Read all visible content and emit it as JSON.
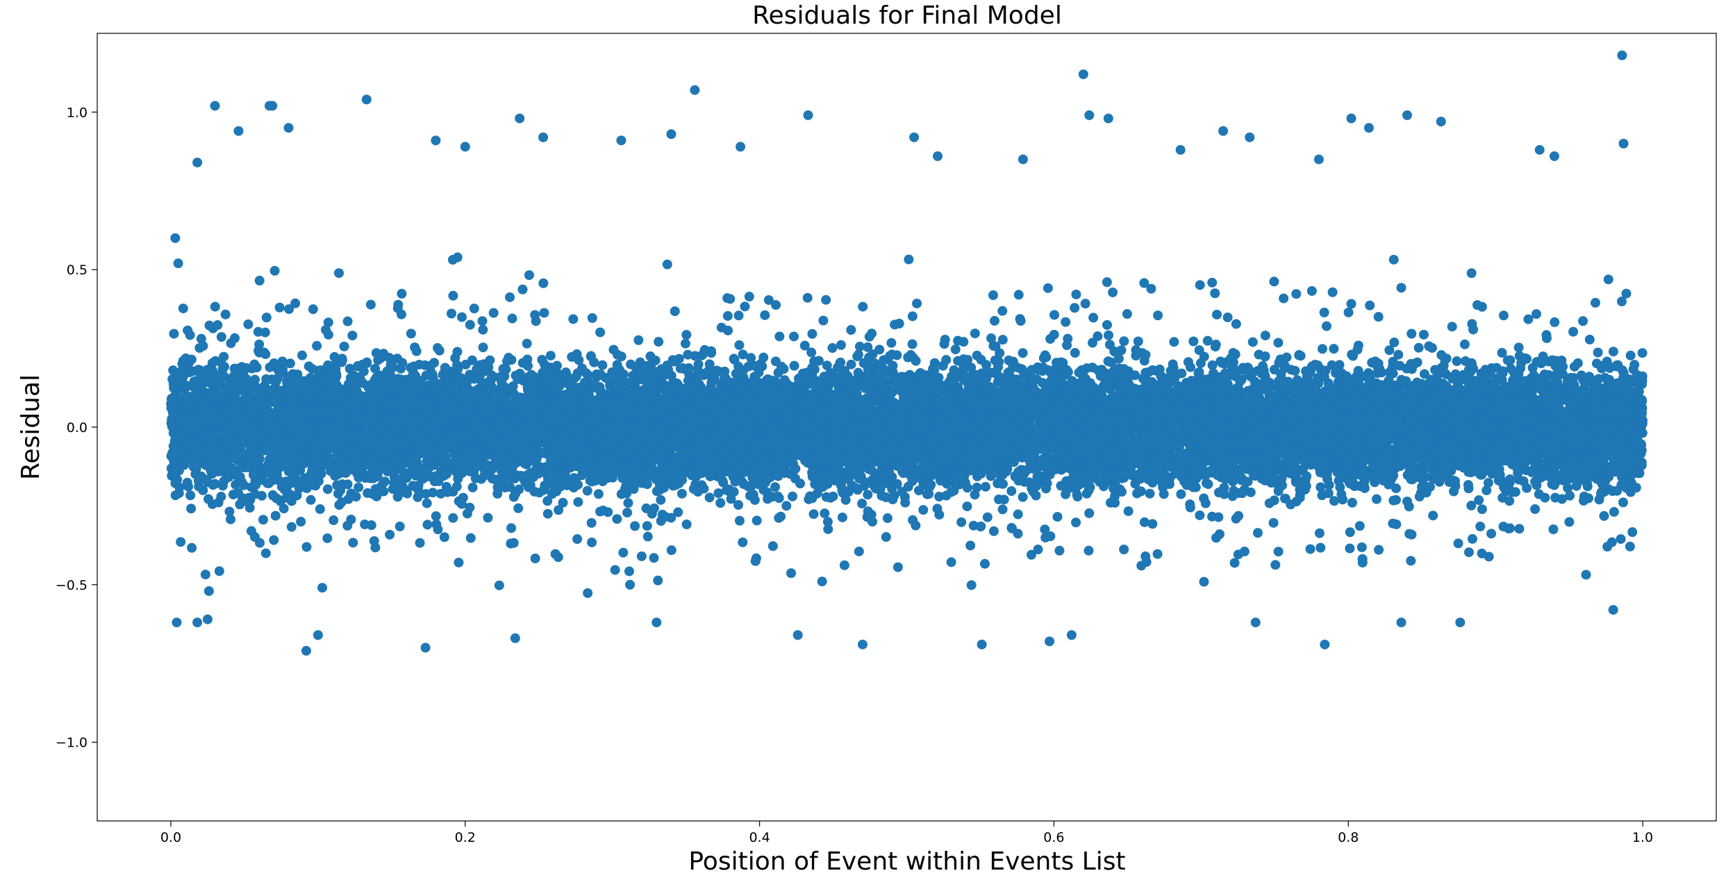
{
  "chart_data": {
    "type": "scatter",
    "title": "Residuals for Final Model",
    "xlabel": "Position of Event within Events List",
    "ylabel": "Residual",
    "xlim": [
      -0.05,
      1.05
    ],
    "ylim": [
      -1.25,
      1.25
    ],
    "x_ticks": [
      0.0,
      0.2,
      0.4,
      0.6,
      0.8,
      1.0
    ],
    "x_tick_labels": [
      "0.0",
      "0.2",
      "0.4",
      "0.6",
      "0.8",
      "1.0"
    ],
    "y_ticks": [
      -1.0,
      -0.5,
      0.0,
      0.5,
      1.0
    ],
    "y_tick_labels": [
      "−1.0",
      "−0.5",
      "0.0",
      "0.5",
      "1.0"
    ],
    "grid": false,
    "marker_color": "#1f77b4",
    "series": [
      {
        "points": [
          [
            0.003,
            0.6
          ],
          [
            0.004,
            -0.62
          ],
          [
            0.005,
            0.52
          ],
          [
            0.018,
            0.84
          ],
          [
            0.03,
            1.02
          ],
          [
            0.046,
            0.94
          ],
          [
            0.067,
            1.02
          ],
          [
            0.08,
            0.95
          ],
          [
            0.133,
            1.04
          ],
          [
            0.18,
            0.91
          ],
          [
            0.2,
            0.89
          ],
          [
            0.237,
            0.98
          ],
          [
            0.253,
            0.92
          ],
          [
            0.306,
            0.91
          ],
          [
            0.34,
            0.93
          ],
          [
            0.356,
            1.07
          ],
          [
            0.387,
            0.89
          ],
          [
            0.433,
            0.99
          ],
          [
            0.505,
            0.92
          ],
          [
            0.521,
            0.86
          ],
          [
            0.579,
            0.85
          ],
          [
            0.62,
            1.12
          ],
          [
            0.624,
            0.99
          ],
          [
            0.637,
            0.98
          ],
          [
            0.686,
            0.88
          ],
          [
            0.715,
            0.94
          ],
          [
            0.733,
            0.92
          ],
          [
            0.78,
            0.85
          ],
          [
            0.802,
            0.98
          ],
          [
            0.814,
            0.95
          ],
          [
            0.84,
            0.99
          ],
          [
            0.863,
            0.97
          ],
          [
            0.93,
            0.88
          ],
          [
            0.94,
            0.86
          ],
          [
            0.986,
            1.18
          ],
          [
            0.987,
            0.9
          ],
          [
            0.092,
            -0.71
          ],
          [
            0.1,
            -0.66
          ],
          [
            0.173,
            -0.7
          ],
          [
            0.234,
            -0.67
          ],
          [
            0.33,
            -0.62
          ],
          [
            0.426,
            -0.66
          ],
          [
            0.47,
            -0.69
          ],
          [
            0.551,
            -0.69
          ],
          [
            0.597,
            -0.68
          ],
          [
            0.612,
            -0.66
          ],
          [
            0.737,
            -0.62
          ],
          [
            0.784,
            -0.69
          ],
          [
            0.836,
            -0.62
          ],
          [
            0.876,
            -0.62
          ],
          [
            0.98,
            -0.58
          ],
          [
            0.018,
            -0.62
          ],
          [
            0.025,
            -0.61
          ],
          [
            0.069,
            1.02
          ]
        ]
      }
    ]
  }
}
